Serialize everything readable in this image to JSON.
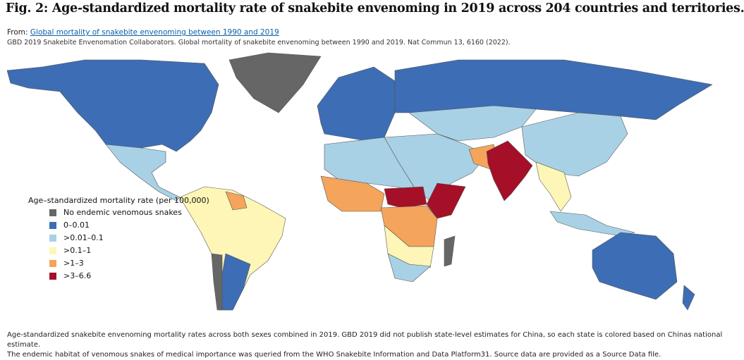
{
  "header": {
    "title": "Fig. 2: Age-standardized mortality rate of snakebite envenoming in 2019 across 204 countries and territories.",
    "source_prefix": "From:",
    "source_link": "Global mortality of snakebite envenoming between 1990 and 2019",
    "citation": "GBD 2019 Snakebite Envenomation Collaborators. Global mortality of snakebite envenoming between 1990 and 2019. Nat Commun 13, 6160 (2022)."
  },
  "legend": {
    "title": "Age–standardized mortality rate (per 100,000)",
    "items": [
      {
        "label": "No endemic venomous snakes",
        "color": "#666666"
      },
      {
        "label": "0–0.01",
        "color": "#3d6db4"
      },
      {
        "label": ">0.01–0.1",
        "color": "#a8d1e6"
      },
      {
        "label": ">0.1–1",
        "color": "#fdf6b7"
      },
      {
        "label": ">1–3",
        "color": "#f4a45b"
      },
      {
        "label": ">3–6.6",
        "color": "#a50f28"
      }
    ]
  },
  "caption": [
    "Age-standardized snakebite envenoming mortality rates across both sexes combined in 2019. GBD 2019 did not publish state-level estimates for China, so each state is colored based on Chinas national estimate.",
    "The endemic habitat of venomous snakes of medical importance was queried from the WHO Snakebite Information and Data Platform31. Source data are provided as a Source Data file."
  ]
}
